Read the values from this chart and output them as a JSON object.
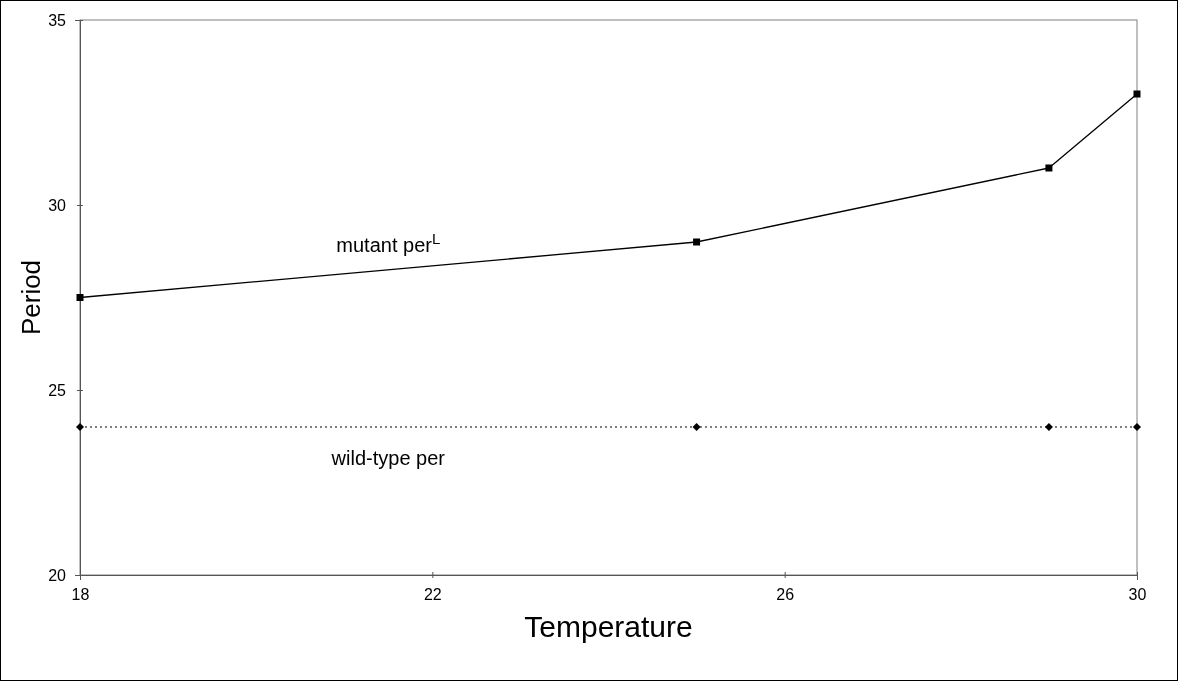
{
  "chart_data": {
    "type": "line",
    "xlabel": "Temperature",
    "ylabel": "Period",
    "xlim": [
      18,
      30
    ],
    "xticks": [
      18,
      22,
      26,
      30
    ],
    "ylim": [
      20,
      35
    ],
    "yticks": [
      20,
      25,
      30,
      35
    ],
    "grid": false,
    "legend": false,
    "series": [
      {
        "name": "mutant per$^{L}$",
        "color": "#000000",
        "x": [
          18,
          25,
          29,
          30
        ],
        "values": [
          27.5,
          29,
          31,
          33
        ],
        "marker": "square",
        "line_style": "solid"
      },
      {
        "name": "wild-type per",
        "color": "#000000",
        "x": [
          18,
          25,
          29,
          30
        ],
        "values": [
          24,
          24,
          24,
          24
        ],
        "marker": "diamond",
        "line_style": "dotted"
      }
    ]
  }
}
